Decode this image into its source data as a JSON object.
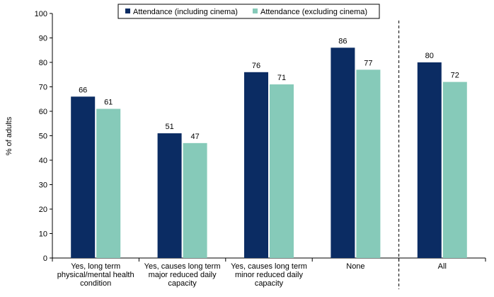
{
  "chart_data": {
    "type": "bar",
    "title": "",
    "xlabel": "",
    "ylabel": "% of adults",
    "ylim": [
      0,
      100
    ],
    "yticks": [
      0,
      10,
      20,
      30,
      40,
      50,
      60,
      70,
      80,
      90,
      100
    ],
    "grid": false,
    "legend_position": "top",
    "categories": [
      [
        "Yes, long term",
        "physical/mental health",
        "condition"
      ],
      [
        "Yes, causes long term",
        "major reduced daily",
        "capacity"
      ],
      [
        "Yes, causes long term",
        "minor reduced daily",
        "capacity"
      ],
      [
        "None"
      ],
      [
        "All"
      ]
    ],
    "series": [
      {
        "name": "Attendance (including cinema)",
        "color": "#0b2c63",
        "values": [
          66,
          51,
          76,
          86,
          80
        ]
      },
      {
        "name": "Attendance (excluding cinema)",
        "color": "#86cab9",
        "values": [
          61,
          47,
          71,
          77,
          72
        ]
      }
    ],
    "separator_before_category": 4
  }
}
